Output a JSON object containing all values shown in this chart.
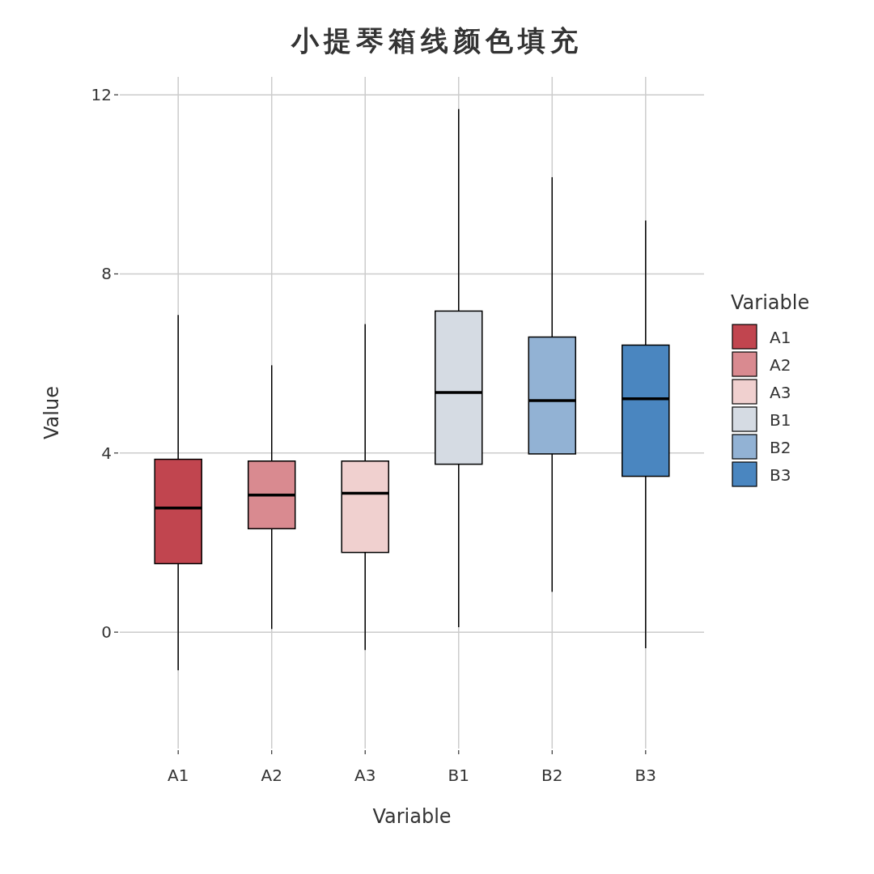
{
  "chart_data": {
    "type": "box",
    "title": "小提琴箱线颜色填充",
    "xlabel": "Variable",
    "ylabel": "Value",
    "legend_title": "Variable",
    "categories": [
      "A1",
      "A2",
      "A3",
      "B1",
      "B2",
      "B3"
    ],
    "series": [
      {
        "name": "A1",
        "color": "#c1454f",
        "boxes": [
          {
            "low": -0.85,
            "q1": 1.53,
            "median": 2.77,
            "q3": 3.86,
            "high": 7.08
          },
          null,
          null,
          null,
          null,
          null
        ]
      },
      {
        "name": "A2",
        "color": "#d98a90",
        "boxes": [
          null,
          {
            "low": 0.07,
            "q1": 2.31,
            "median": 3.06,
            "q3": 3.82,
            "high": 5.96
          },
          null,
          null,
          null,
          null
        ]
      },
      {
        "name": "A3",
        "color": "#f0d0cf",
        "boxes": [
          null,
          null,
          {
            "low": -0.4,
            "q1": 1.78,
            "median": 3.1,
            "q3": 3.82,
            "high": 6.88
          },
          null,
          null,
          null
        ]
      },
      {
        "name": "B1",
        "color": "#d5dbe3",
        "boxes": [
          null,
          null,
          null,
          {
            "low": 0.11,
            "q1": 3.75,
            "median": 5.35,
            "q3": 7.17,
            "high": 11.68
          },
          null,
          null
        ]
      },
      {
        "name": "B2",
        "color": "#92b2d4",
        "boxes": [
          null,
          null,
          null,
          null,
          {
            "low": 0.9,
            "q1": 3.98,
            "median": 5.17,
            "q3": 6.59,
            "high": 10.16
          },
          null
        ]
      },
      {
        "name": "B3",
        "color": "#4a86c0",
        "boxes": [
          null,
          null,
          null,
          null,
          null,
          {
            "low": -0.36,
            "q1": 3.48,
            "median": 5.21,
            "q3": 6.41,
            "high": 9.19
          }
        ]
      }
    ],
    "ylim": [
      -2.6,
      12.4
    ],
    "yticks": [
      0,
      4,
      8,
      12
    ],
    "grid": true,
    "legend": "right"
  }
}
